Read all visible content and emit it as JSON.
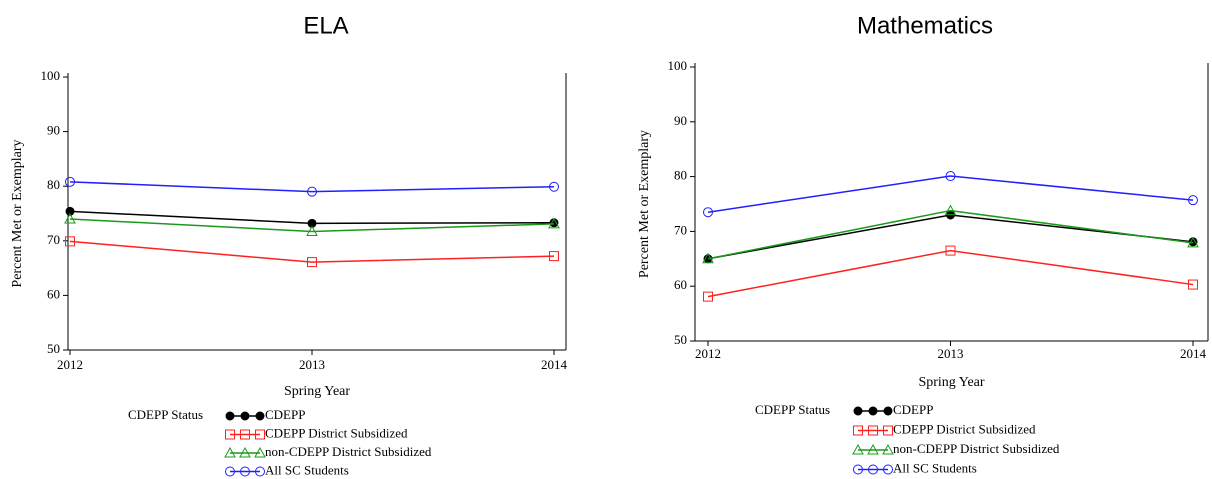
{
  "chart_data": [
    {
      "type": "line",
      "title": "ELA",
      "x_label": "Spring Year",
      "y_label": "Percent Met or Exemplary",
      "categories": [
        "2012",
        "2013",
        "2014"
      ],
      "ylim": [
        50,
        100
      ],
      "yticks": [
        50,
        60,
        70,
        80,
        90,
        100
      ],
      "legend_title": "CDEPP Status",
      "series": [
        {
          "name": "CDEPP",
          "color": "#000000",
          "marker": "filled-circle",
          "values": [
            75.4,
            73.2,
            73.3
          ]
        },
        {
          "name": "CDEPP District Subsidized",
          "color": "#ff2020",
          "marker": "square",
          "values": [
            69.9,
            66.1,
            67.2
          ]
        },
        {
          "name": "non-CDEPP District Subsidized",
          "color": "#1a9a1a",
          "marker": "triangle",
          "values": [
            74.0,
            71.7,
            73.1
          ]
        },
        {
          "name": "All SC Students",
          "color": "#2020ff",
          "marker": "circle",
          "values": [
            80.8,
            79.0,
            79.9
          ]
        }
      ]
    },
    {
      "type": "line",
      "title": "Mathematics",
      "x_label": "Spring Year",
      "y_label": "Percent Met or Exemplary",
      "categories": [
        "2012",
        "2013",
        "2014"
      ],
      "ylim": [
        50,
        100
      ],
      "yticks": [
        50,
        60,
        70,
        80,
        90,
        100
      ],
      "legend_title": "CDEPP Status",
      "series": [
        {
          "name": "CDEPP",
          "color": "#000000",
          "marker": "filled-circle",
          "values": [
            65.0,
            73.0,
            68.1
          ]
        },
        {
          "name": "CDEPP District Subsidized",
          "color": "#ff2020",
          "marker": "square",
          "values": [
            58.1,
            66.5,
            60.3
          ]
        },
        {
          "name": "non-CDEPP District Subsidized",
          "color": "#1a9a1a",
          "marker": "triangle",
          "values": [
            65.0,
            73.8,
            67.9
          ]
        },
        {
          "name": "All SC Students",
          "color": "#2020ff",
          "marker": "circle",
          "values": [
            73.5,
            80.1,
            75.7
          ]
        }
      ]
    }
  ]
}
